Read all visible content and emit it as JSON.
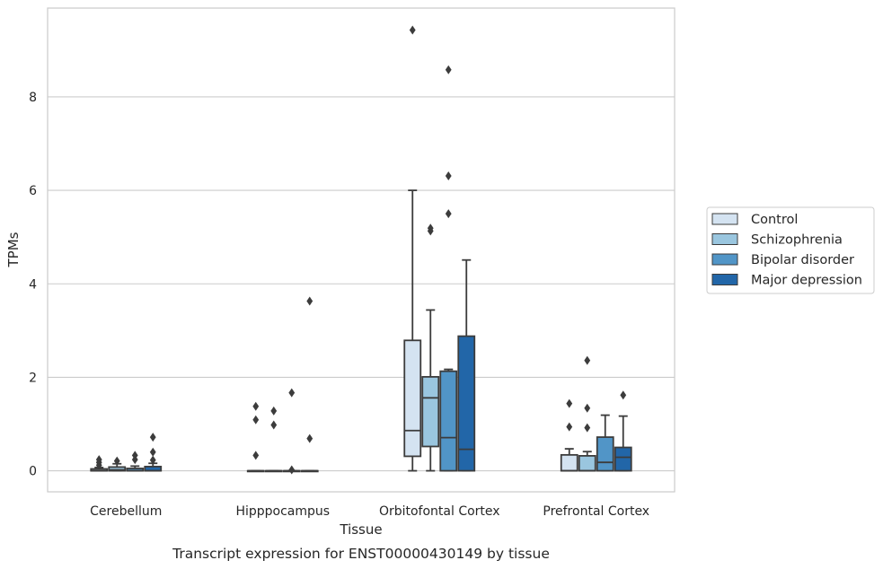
{
  "chart_data": {
    "type": "box",
    "caption": "Transcript expression for ENST00000430149 by tissue",
    "xlabel": "Tissue",
    "ylabel": "TPMs",
    "ylim": [
      -0.45,
      9.9
    ],
    "yticks": [
      0,
      2,
      4,
      6,
      8
    ],
    "grid": "horizontal",
    "legend_position": "right",
    "categories": [
      "Cerebellum",
      "Hipppocampus",
      "Orbitofontal Cortex",
      "Prefrontal Cortex"
    ],
    "series": [
      {
        "name": "Control",
        "color": "#d4e3f1",
        "boxes": [
          {
            "q1": 0,
            "median": 0,
            "q3": 0.04,
            "whisker_low": 0,
            "whisker_high": 0.07,
            "outliers": [
              0.12,
              0.18,
              0.24
            ]
          },
          {
            "q1": 0,
            "median": 0,
            "q3": 0,
            "whisker_low": 0,
            "whisker_high": 0,
            "outliers": [
              0.33,
              1.09,
              1.38
            ]
          },
          {
            "q1": 0.31,
            "median": 0.86,
            "q3": 2.79,
            "whisker_low": 0,
            "whisker_high": 6.0,
            "outliers": [
              9.43
            ]
          },
          {
            "q1": 0,
            "median": 0,
            "q3": 0.34,
            "whisker_low": 0,
            "whisker_high": 0.47,
            "outliers": [
              0.94,
              1.44
            ]
          }
        ]
      },
      {
        "name": "Schizophrenia",
        "color": "#9ac6df",
        "boxes": [
          {
            "q1": 0,
            "median": 0.02,
            "q3": 0.08,
            "whisker_low": 0,
            "whisker_high": 0.15,
            "outliers": [
              0.21
            ]
          },
          {
            "q1": 0,
            "median": 0,
            "q3": 0,
            "whisker_low": 0,
            "whisker_high": 0,
            "outliers": [
              0.98,
              1.28
            ]
          },
          {
            "q1": 0.52,
            "median": 1.56,
            "q3": 2.01,
            "whisker_low": 0,
            "whisker_high": 3.44,
            "outliers": [
              5.13,
              5.19
            ]
          },
          {
            "q1": 0,
            "median": 0,
            "q3": 0.32,
            "whisker_low": 0,
            "whisker_high": 0.41,
            "outliers": [
              0.92,
              1.34,
              2.36
            ]
          }
        ]
      },
      {
        "name": "Bipolar disorder",
        "color": "#5195c7",
        "boxes": [
          {
            "q1": 0,
            "median": 0,
            "q3": 0.05,
            "whisker_low": 0,
            "whisker_high": 0.1,
            "outliers": [
              0.24,
              0.33
            ]
          },
          {
            "q1": 0,
            "median": 0,
            "q3": 0,
            "whisker_low": 0,
            "whisker_high": 0,
            "outliers": [
              0.02,
              1.67
            ]
          },
          {
            "q1": 0,
            "median": 0.71,
            "q3": 2.13,
            "whisker_low": 0,
            "whisker_high": 2.17,
            "outliers": [
              5.5,
              6.31,
              8.58
            ]
          },
          {
            "q1": 0,
            "median": 0.18,
            "q3": 0.72,
            "whisker_low": 0,
            "whisker_high": 1.19,
            "outliers": []
          }
        ]
      },
      {
        "name": "Major depression",
        "color": "#2266a8",
        "boxes": [
          {
            "q1": 0,
            "median": 0,
            "q3": 0.09,
            "whisker_low": 0,
            "whisker_high": 0.16,
            "outliers": [
              0.23,
              0.4,
              0.72
            ]
          },
          {
            "q1": 0,
            "median": 0,
            "q3": 0,
            "whisker_low": 0,
            "whisker_high": 0,
            "outliers": [
              0.69,
              3.63
            ]
          },
          {
            "q1": 0,
            "median": 0.46,
            "q3": 2.88,
            "whisker_low": 0,
            "whisker_high": 4.51,
            "outliers": []
          },
          {
            "q1": 0,
            "median": 0.29,
            "q3": 0.5,
            "whisker_low": 0,
            "whisker_high": 1.17,
            "outliers": [
              1.62
            ]
          }
        ]
      }
    ]
  }
}
